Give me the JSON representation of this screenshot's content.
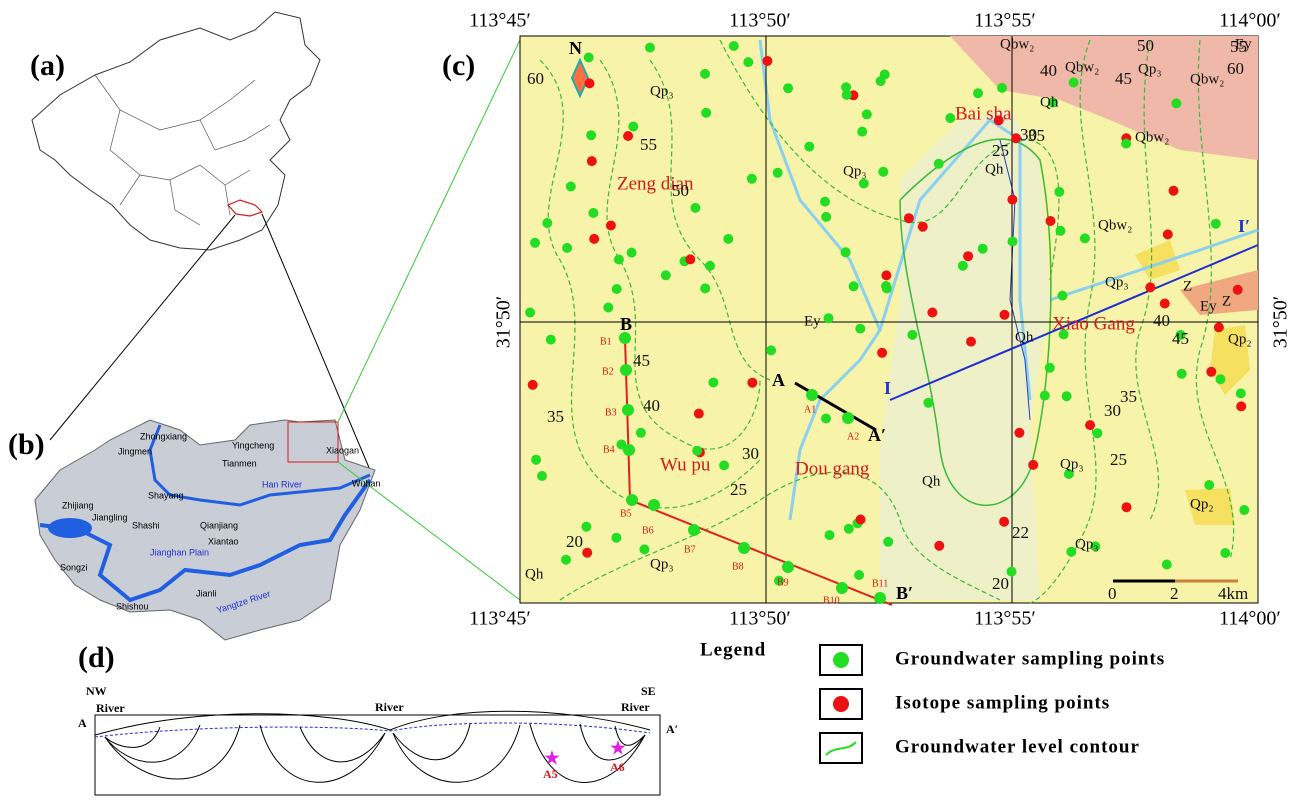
{
  "panel_a": {
    "label": "(a)"
  },
  "panel_b": {
    "label": "(b)",
    "places": [
      "Zhongxiang",
      "Jingmen",
      "Yingcheng",
      "Xiaogan",
      "Tianmen",
      "Wuhan",
      "Shayang",
      "Zhijiang",
      "Jiangling",
      "Shashi",
      "Qianjiang",
      "Xiantao",
      "Songzi",
      "Jianli",
      "Shishou"
    ],
    "rivers": [
      "Han River",
      "Yangtze River"
    ],
    "region": "Jianghan Plain"
  },
  "panel_c": {
    "label": "(c)",
    "lon_labels_top": [
      "113°45′",
      "113°50′",
      "113°55′",
      "114°00′"
    ],
    "lon_labels_bottom": [
      "113°45′",
      "113°50′",
      "113°55′",
      "114°00′"
    ],
    "lat_labels": [
      "31°50′",
      "31°50′"
    ],
    "north": "N",
    "towns": [
      "Zeng dian",
      "Bai sha",
      "Xiao Gang",
      "Wu pu",
      "Dou gang"
    ],
    "geology": [
      "Qp₃",
      "Qp₃",
      "Qh",
      "Qbw₂",
      "Qbw₂",
      "Qp₃",
      "Qh",
      "Qbw₂",
      "Qbw₂",
      "Qbw₂",
      "Qp₃",
      "Z",
      "Z",
      "Ey",
      "Ey",
      "Ey",
      "Qh",
      "Qh",
      "Qp₃",
      "Qp₃",
      "Qp₂",
      "Qp₂",
      "Qp₃",
      "Qh"
    ],
    "contours": [
      60,
      55,
      50,
      45,
      40,
      35,
      30,
      25,
      20,
      55,
      50,
      45,
      60,
      40,
      35,
      30,
      25,
      40,
      45,
      35,
      30,
      25,
      22,
      20
    ],
    "sections": [
      "A",
      "A′",
      "A1",
      "A2",
      "B",
      "B′",
      "I",
      "I′"
    ],
    "samples_b": [
      "B1",
      "B2",
      "B3",
      "B4",
      "B5",
      "B6",
      "B7",
      "B8",
      "B9",
      "B10",
      "B11"
    ],
    "scale": [
      "0",
      "2",
      "4km"
    ]
  },
  "panel_d": {
    "label": "(d)",
    "directions": [
      "NW",
      "SE"
    ],
    "ends": [
      "A",
      "A′"
    ],
    "rivers": [
      "River",
      "River",
      "River"
    ],
    "points": [
      "A5",
      "A6"
    ]
  },
  "legend": {
    "title": "Legend",
    "items": [
      "Groundwater sampling points",
      "Isotope sampling points",
      "Groundwater level contour"
    ]
  }
}
